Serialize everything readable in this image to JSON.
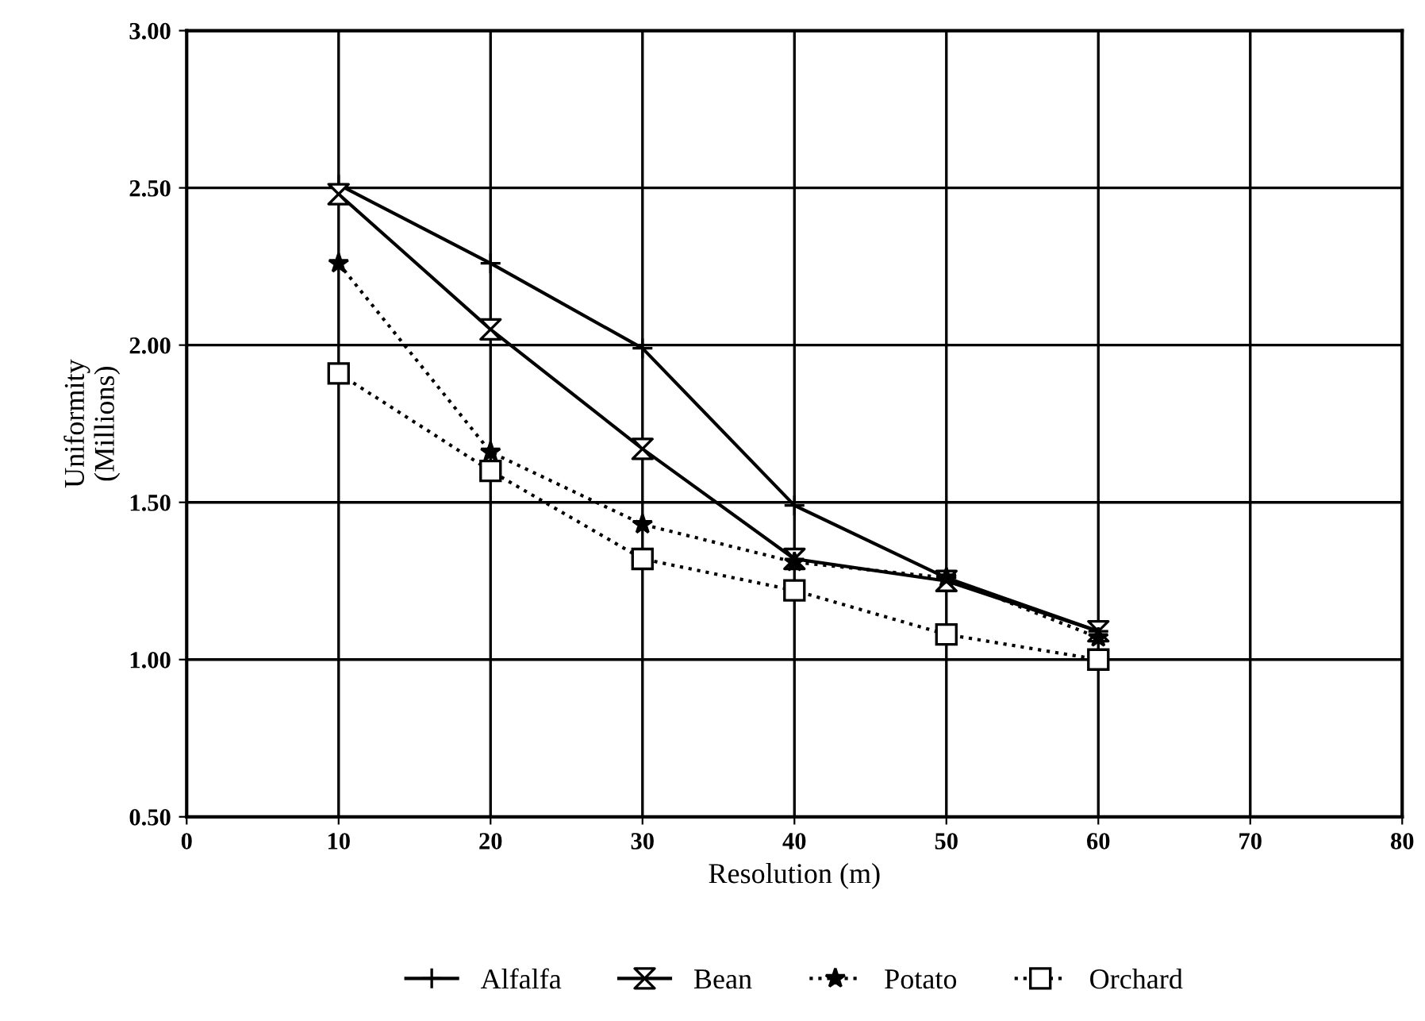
{
  "chart_data": {
    "type": "line",
    "xlabel": "Resolution (m)",
    "ylabel": "Uniformity\n(Millions)",
    "x": [
      10,
      20,
      30,
      40,
      50,
      60
    ],
    "series": [
      {
        "name": "Alfalfa",
        "color": "#000000",
        "marker": "cross",
        "line_style": "solid",
        "values": [
          2.51,
          2.26,
          1.99,
          1.49,
          1.26,
          1.09
        ]
      },
      {
        "name": "Bean",
        "color": "#000000",
        "marker": "diamond",
        "line_style": "solid",
        "values": [
          2.48,
          2.05,
          1.67,
          1.32,
          1.25,
          1.09
        ]
      },
      {
        "name": "Potato",
        "color": "#000000",
        "marker": "star",
        "line_style": "dotted",
        "values": [
          2.26,
          1.66,
          1.43,
          1.31,
          1.26,
          1.07
        ]
      },
      {
        "name": "Orchard",
        "color": "#000000",
        "marker": "square",
        "line_style": "dotted",
        "values": [
          1.91,
          1.6,
          1.32,
          1.22,
          1.08,
          1.0
        ]
      }
    ],
    "xlim": [
      0,
      80
    ],
    "xticks": [
      0,
      10,
      20,
      30,
      40,
      50,
      60,
      70,
      80
    ],
    "ylim": [
      0.5,
      3.0
    ],
    "yticks": [
      {
        "value": 0.5,
        "label": "0.50"
      },
      {
        "value": 1.0,
        "label": "1.00"
      },
      {
        "value": 1.5,
        "label": "1.50"
      },
      {
        "value": 2.0,
        "label": "2.00"
      },
      {
        "value": 2.5,
        "label": "2.50"
      },
      {
        "value": 3.0,
        "label": "3.00"
      }
    ],
    "grid": true,
    "legend": "bottom"
  }
}
